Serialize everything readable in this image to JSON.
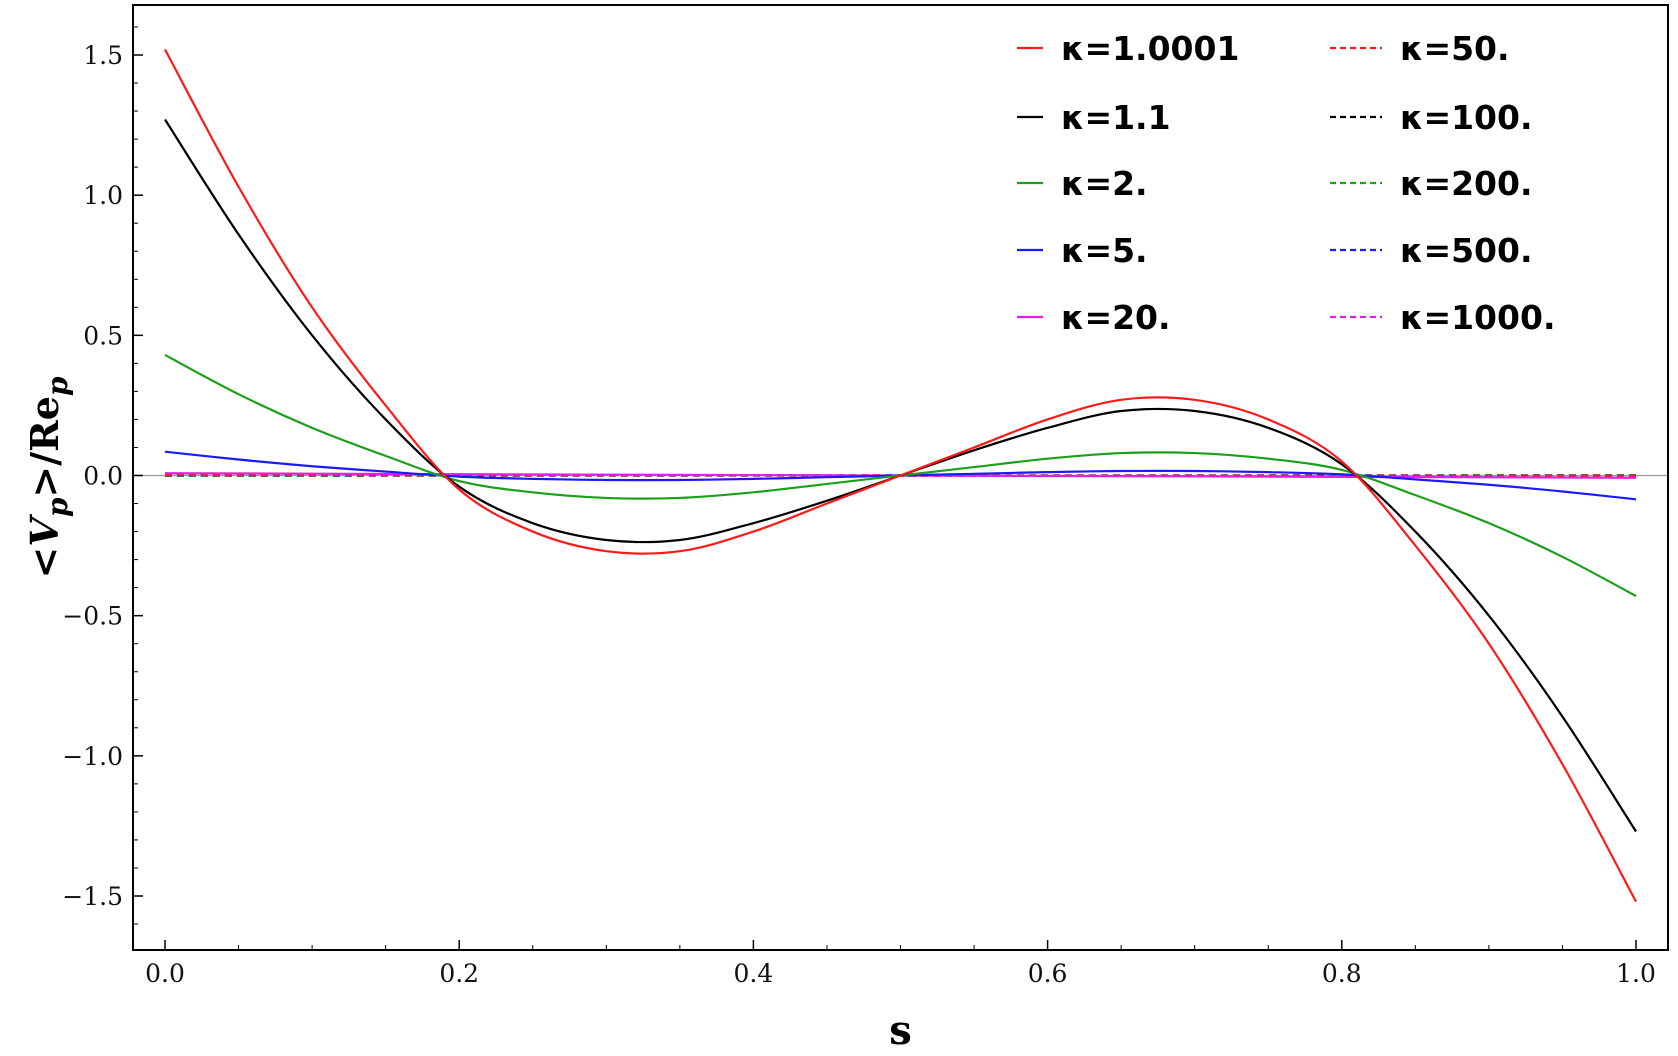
{
  "chart_data": {
    "type": "line",
    "xlabel": "s",
    "ylabel": {
      "bracket_open": "<",
      "var": "V",
      "sub": "p",
      "mid": ">/Re",
      "sub2": "p"
    },
    "xlim": [
      0,
      1
    ],
    "ylim": [
      -1.68,
      1.68
    ],
    "xticks": [
      {
        "value": 0.0,
        "label": "0.0"
      },
      {
        "value": 0.2,
        "label": "0.2"
      },
      {
        "value": 0.4,
        "label": "0.4"
      },
      {
        "value": 0.6,
        "label": "0.6"
      },
      {
        "value": 0.8,
        "label": "0.8"
      },
      {
        "value": 1.0,
        "label": "1.0"
      }
    ],
    "yticks": [
      {
        "value": 1.5,
        "label": "1.5"
      },
      {
        "value": 1.0,
        "label": "1.0"
      },
      {
        "value": 0.5,
        "label": "0.5"
      },
      {
        "value": 0.0,
        "label": "0.0"
      },
      {
        "value": -0.5,
        "label": "−0.5"
      },
      {
        "value": -1.0,
        "label": "−1.0"
      },
      {
        "value": -1.5,
        "label": "−1.5"
      }
    ],
    "grid": false,
    "zero_line": true,
    "legend": "top-right",
    "series": [
      {
        "name": "κ=1.0001",
        "color": "#ff1a1a",
        "dash": "solid",
        "x": [
          0,
          0.05,
          0.1,
          0.15,
          0.2,
          0.25,
          0.3,
          0.35,
          0.4,
          0.45,
          0.5,
          0.55,
          0.6,
          0.65,
          0.7,
          0.75,
          0.8,
          0.85,
          0.9,
          0.95,
          1.0
        ],
        "y": [
          1.52,
          1.03,
          0.6,
          0.25,
          -0.05,
          -0.2,
          -0.27,
          -0.27,
          -0.2,
          -0.1,
          0.0,
          0.1,
          0.2,
          0.27,
          0.27,
          0.2,
          0.05,
          -0.25,
          -0.6,
          -1.03,
          -1.52
        ]
      },
      {
        "name": "κ=1.1",
        "color": "#000000",
        "dash": "solid",
        "x": [
          0,
          0.05,
          0.1,
          0.15,
          0.2,
          0.25,
          0.3,
          0.35,
          0.4,
          0.45,
          0.5,
          0.55,
          0.6,
          0.65,
          0.7,
          0.75,
          0.8,
          0.85,
          0.9,
          0.95,
          1.0
        ],
        "y": [
          1.27,
          0.86,
          0.5,
          0.2,
          -0.04,
          -0.17,
          -0.23,
          -0.23,
          -0.17,
          -0.09,
          0.0,
          0.09,
          0.17,
          0.23,
          0.23,
          0.17,
          0.04,
          -0.2,
          -0.5,
          -0.86,
          -1.27
        ]
      },
      {
        "name": "κ=2.",
        "color": "#1aa01a",
        "dash": "solid",
        "x": [
          0,
          0.05,
          0.1,
          0.15,
          0.2,
          0.25,
          0.3,
          0.35,
          0.4,
          0.45,
          0.5,
          0.55,
          0.6,
          0.65,
          0.7,
          0.75,
          0.8,
          0.85,
          0.9,
          0.95,
          1.0
        ],
        "y": [
          0.43,
          0.29,
          0.17,
          0.07,
          -0.02,
          -0.06,
          -0.08,
          -0.08,
          -0.06,
          -0.03,
          0.0,
          0.03,
          0.06,
          0.08,
          0.08,
          0.06,
          0.02,
          -0.07,
          -0.17,
          -0.29,
          -0.43
        ]
      },
      {
        "name": "κ=5.",
        "color": "#1a1aff",
        "dash": "solid",
        "x": [
          0,
          0.05,
          0.1,
          0.15,
          0.2,
          0.25,
          0.3,
          0.35,
          0.4,
          0.45,
          0.5,
          0.55,
          0.6,
          0.65,
          0.7,
          0.75,
          0.8,
          0.85,
          0.9,
          0.95,
          1.0
        ],
        "y": [
          0.085,
          0.057,
          0.033,
          0.014,
          -0.004,
          -0.012,
          -0.016,
          -0.016,
          -0.012,
          -0.006,
          0.0,
          0.006,
          0.012,
          0.016,
          0.016,
          0.012,
          0.004,
          -0.014,
          -0.033,
          -0.057,
          -0.085
        ]
      },
      {
        "name": "κ=20.",
        "color": "#e020e0",
        "dash": "solid",
        "x": [
          0,
          0.5,
          1.0
        ],
        "y": [
          0.008,
          0.0,
          -0.008
        ]
      },
      {
        "name": "κ=50.",
        "color": "#ff1a1a",
        "dash": "dashed",
        "x": [
          0,
          0.5,
          1.0
        ],
        "y": [
          0.002,
          0.0,
          -0.002
        ]
      },
      {
        "name": "κ=100.",
        "color": "#000000",
        "dash": "dashed",
        "x": [
          0,
          0.5,
          1.0
        ],
        "y": [
          0.001,
          0.0,
          -0.001
        ]
      },
      {
        "name": "κ=200.",
        "color": "#1aa01a",
        "dash": "dashed",
        "x": [
          0,
          0.5,
          1.0
        ],
        "y": [
          0.0,
          0.0,
          0.0
        ]
      },
      {
        "name": "κ=500.",
        "color": "#1a1aff",
        "dash": "dashed",
        "x": [
          0,
          0.5,
          1.0
        ],
        "y": [
          0.0,
          0.0,
          0.0
        ]
      },
      {
        "name": "κ=1000.",
        "color": "#e020e0",
        "dash": "dashed",
        "x": [
          0,
          0.5,
          1.0
        ],
        "y": [
          0.0,
          0.0,
          0.0
        ]
      }
    ]
  }
}
